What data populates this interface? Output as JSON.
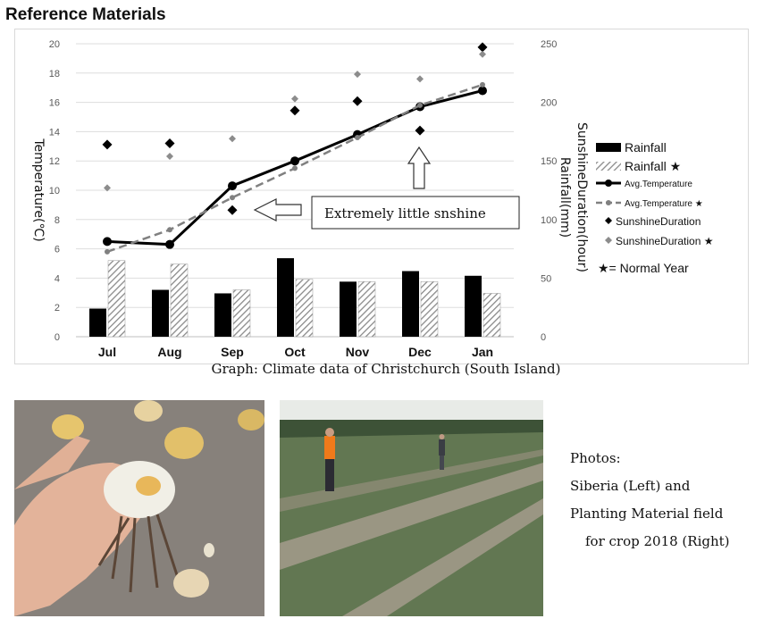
{
  "page": {
    "title": "Reference Materials"
  },
  "chart_data": {
    "type": "bar",
    "caption": "Graph: Climate data of Christchurch (South Island)",
    "categories": [
      "Jul",
      "Aug",
      "Sep",
      "Oct",
      "Nov",
      "Dec",
      "Jan"
    ],
    "left_axis": {
      "label": "Temperature(℃)",
      "range": [
        0,
        20
      ],
      "ticks": [
        0,
        2,
        4,
        6,
        8,
        10,
        12,
        14,
        16,
        18,
        20
      ]
    },
    "right_axis": {
      "label_1": "SunshineDuration(hour)",
      "label_2": "Rainfall(mm)",
      "range": [
        0,
        250
      ],
      "ticks": [
        0,
        50,
        100,
        150,
        200,
        250
      ]
    },
    "series": [
      {
        "name": "Rainfall",
        "kind": "bar",
        "style": "solid",
        "color": "#000000",
        "axis": "right",
        "values": [
          24,
          40,
          37,
          67,
          47,
          56,
          52
        ]
      },
      {
        "name": "Rainfall ★",
        "kind": "bar",
        "style": "hatched",
        "color": "#7f7f7f",
        "axis": "right",
        "values": [
          65,
          62,
          40,
          49,
          47,
          47,
          37
        ]
      },
      {
        "name": "Avg.Temperature",
        "kind": "line",
        "style": "solid",
        "color": "#000000",
        "axis": "left",
        "values": [
          6.5,
          6.3,
          10.3,
          12.0,
          13.8,
          15.7,
          16.8
        ]
      },
      {
        "name": "Avg.Temperature ★",
        "kind": "line",
        "style": "dashed",
        "color": "#808080",
        "axis": "left",
        "values": [
          5.8,
          7.3,
          9.5,
          11.5,
          13.6,
          15.8,
          17.2
        ]
      },
      {
        "name": "SunshineDuration",
        "kind": "scatter",
        "marker": "diamond",
        "color": "#000000",
        "axis": "right",
        "values": [
          164,
          165,
          108,
          193,
          201,
          176,
          247
        ]
      },
      {
        "name": "SunshineDuration ★",
        "kind": "scatter",
        "marker": "diamond",
        "color": "#8c8c8c",
        "axis": "right",
        "values": [
          127,
          154,
          169,
          203,
          224,
          220,
          241
        ]
      }
    ],
    "legend_note": "★= Normal Year",
    "legend_position": "right",
    "annotations": [
      {
        "text": "Extremely little snshine"
      }
    ]
  },
  "photos": {
    "left_alt": "Lily bulbs held in hand",
    "right_alt": "Planting material field with two workers",
    "note_lines": [
      "Photos:",
      "Siberia (Left) and",
      "Planting Material field",
      "for crop 2018 (Right)"
    ]
  }
}
